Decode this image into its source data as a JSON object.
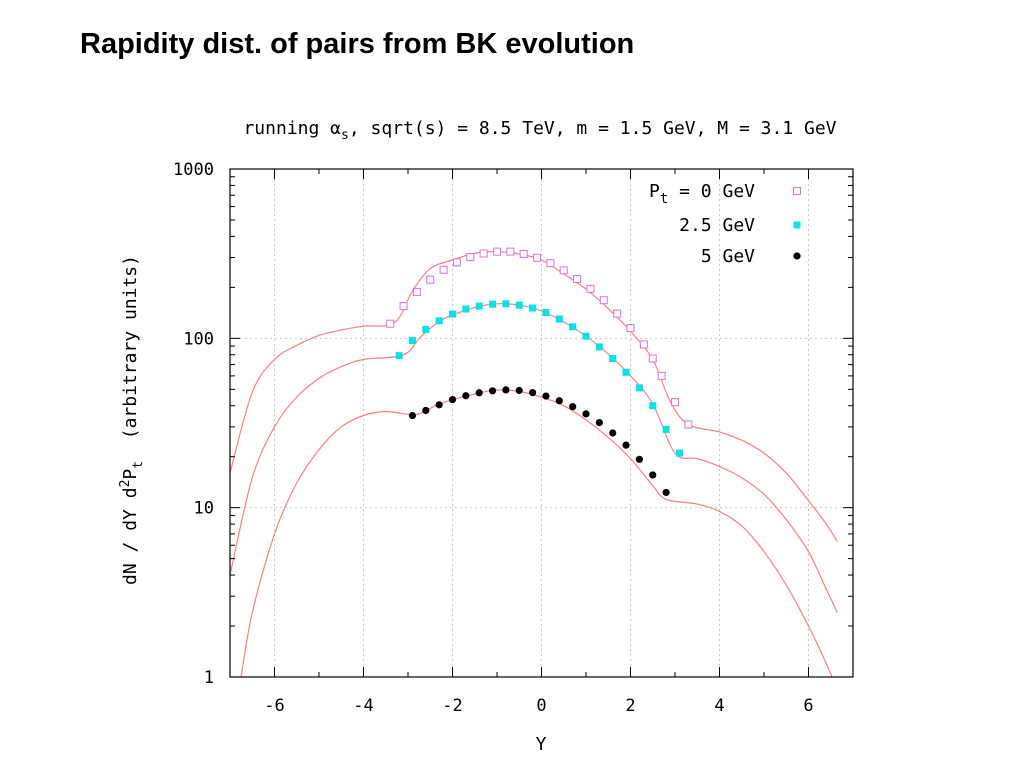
{
  "slide": {
    "title": "Rapidity dist. of pairs from BK evolution"
  },
  "chart_data": {
    "type": "line",
    "title_parts": {
      "pre": "running ",
      "alpha": "α",
      "sub": "s",
      "post": ", sqrt(s) = 8.5 TeV, m = 1.5 GeV, M = 3.1 GeV"
    },
    "xlabel": "Y",
    "ylabel_parts": {
      "pre": "dN / dY d",
      "sup": "2",
      "mid": "P",
      "sub": "t",
      "post": "  (arbitrary units)"
    },
    "xlim": [
      -7,
      7
    ],
    "ylim": [
      1,
      1000
    ],
    "yscale": "log",
    "grid": true,
    "legend_position": "top-right",
    "x_ticks": [
      -6,
      -4,
      -2,
      0,
      2,
      4,
      6
    ],
    "x_tick_labels": [
      "-6",
      "-4",
      "-2",
      "0",
      "2",
      "4",
      "6"
    ],
    "y_ticks": [
      1,
      10,
      100,
      1000
    ],
    "y_tick_labels": [
      "1",
      "10",
      "100",
      "1000"
    ],
    "curve_color": "#ff7f7f",
    "legend": {
      "header": {
        "pre": "P",
        "sub": "t",
        "post": " = 0 GeV"
      },
      "entries": [
        "2.5 GeV",
        "5 GeV"
      ]
    },
    "series": [
      {
        "name": "Pt = 0 GeV",
        "marker": "open-square",
        "color": "#e070e0",
        "curve": [
          [
            -7.0,
            16
          ],
          [
            -6.5,
            48
          ],
          [
            -6.0,
            75
          ],
          [
            -5.5,
            91
          ],
          [
            -5.0,
            104
          ],
          [
            -4.5,
            112
          ],
          [
            -4.0,
            118
          ],
          [
            -3.3,
            124
          ],
          [
            -2.9,
            190
          ],
          [
            -2.5,
            258
          ],
          [
            -2.0,
            290
          ],
          [
            -1.5,
            318
          ],
          [
            -1.0,
            325
          ],
          [
            -0.5,
            315
          ],
          [
            0.0,
            290
          ],
          [
            0.5,
            240
          ],
          [
            1.0,
            195
          ],
          [
            1.5,
            150
          ],
          [
            2.0,
            110
          ],
          [
            2.5,
            75
          ],
          [
            2.9,
            42
          ],
          [
            3.3,
            31
          ],
          [
            4.0,
            28
          ],
          [
            4.5,
            25
          ],
          [
            5.0,
            21
          ],
          [
            5.5,
            16
          ],
          [
            6.0,
            11
          ],
          [
            6.4,
            8
          ],
          [
            6.65,
            6.3
          ]
        ],
        "points": [
          [
            -3.4,
            122
          ],
          [
            -3.1,
            155
          ],
          [
            -2.8,
            188
          ],
          [
            -2.5,
            222
          ],
          [
            -2.2,
            254
          ],
          [
            -1.9,
            281
          ],
          [
            -1.6,
            302
          ],
          [
            -1.3,
            317
          ],
          [
            -1.0,
            325
          ],
          [
            -0.7,
            325
          ],
          [
            -0.4,
            315
          ],
          [
            -0.1,
            299
          ],
          [
            0.2,
            278
          ],
          [
            0.5,
            252
          ],
          [
            0.8,
            224
          ],
          [
            1.1,
            196
          ],
          [
            1.4,
            168
          ],
          [
            1.7,
            140
          ],
          [
            2.0,
            115
          ],
          [
            2.3,
            92
          ],
          [
            2.5,
            76
          ],
          [
            2.7,
            60
          ],
          [
            3.0,
            42
          ],
          [
            3.3,
            31
          ]
        ]
      },
      {
        "name": "2.5 GeV",
        "marker": "filled-square",
        "color": "#00e5e5",
        "curve": [
          [
            -7.0,
            4
          ],
          [
            -6.5,
            15
          ],
          [
            -6.0,
            30
          ],
          [
            -5.5,
            45
          ],
          [
            -5.0,
            58
          ],
          [
            -4.5,
            68
          ],
          [
            -4.0,
            75
          ],
          [
            -3.1,
            80
          ],
          [
            -2.7,
            103
          ],
          [
            -2.2,
            130
          ],
          [
            -1.5,
            152
          ],
          [
            -1.0,
            160
          ],
          [
            -0.5,
            157
          ],
          [
            0.0,
            145
          ],
          [
            0.5,
            125
          ],
          [
            1.0,
            103
          ],
          [
            1.5,
            81
          ],
          [
            2.0,
            60
          ],
          [
            2.5,
            41
          ],
          [
            3.0,
            21
          ],
          [
            3.5,
            19.5
          ],
          [
            4.0,
            17.5
          ],
          [
            4.5,
            15
          ],
          [
            5.0,
            12
          ],
          [
            5.5,
            8.5
          ],
          [
            6.0,
            5.5
          ],
          [
            6.4,
            3.3
          ],
          [
            6.65,
            2.4
          ]
        ],
        "points": [
          [
            -3.2,
            79
          ],
          [
            -2.9,
            97
          ],
          [
            -2.6,
            113
          ],
          [
            -2.3,
            127
          ],
          [
            -2.0,
            139
          ],
          [
            -1.7,
            149
          ],
          [
            -1.4,
            155
          ],
          [
            -1.1,
            159
          ],
          [
            -0.8,
            160
          ],
          [
            -0.5,
            157
          ],
          [
            -0.2,
            151
          ],
          [
            0.1,
            142
          ],
          [
            0.4,
            130
          ],
          [
            0.7,
            117
          ],
          [
            1.0,
            103
          ],
          [
            1.3,
            89
          ],
          [
            1.6,
            76
          ],
          [
            1.9,
            63
          ],
          [
            2.2,
            51
          ],
          [
            2.5,
            40
          ],
          [
            2.8,
            29
          ],
          [
            3.1,
            21
          ]
        ]
      },
      {
        "name": "5 GeV",
        "marker": "filled-circle",
        "color": "#000000",
        "curve": [
          [
            -6.75,
            1
          ],
          [
            -6.5,
            2.4
          ],
          [
            -6.0,
            7
          ],
          [
            -5.5,
            14
          ],
          [
            -5.0,
            22
          ],
          [
            -4.5,
            30
          ],
          [
            -4.0,
            35
          ],
          [
            -3.5,
            37
          ],
          [
            -2.8,
            35.5
          ],
          [
            -2.3,
            41
          ],
          [
            -1.5,
            47
          ],
          [
            -1.0,
            49.5
          ],
          [
            -0.5,
            48.5
          ],
          [
            0.0,
            45
          ],
          [
            0.5,
            40
          ],
          [
            1.0,
            33
          ],
          [
            1.5,
            26
          ],
          [
            2.0,
            19.5
          ],
          [
            2.5,
            13.5
          ],
          [
            2.8,
            11.2
          ],
          [
            3.5,
            10.5
          ],
          [
            4.0,
            9.5
          ],
          [
            4.5,
            7.8
          ],
          [
            5.0,
            5.5
          ],
          [
            5.5,
            3.5
          ],
          [
            6.0,
            2.0
          ],
          [
            6.4,
            1.2
          ],
          [
            6.6,
            0.9
          ]
        ],
        "points": [
          [
            -2.9,
            35
          ],
          [
            -2.6,
            37.5
          ],
          [
            -2.3,
            40.5
          ],
          [
            -2.0,
            43.5
          ],
          [
            -1.7,
            45.8
          ],
          [
            -1.4,
            47.7
          ],
          [
            -1.1,
            49
          ],
          [
            -0.8,
            49.6
          ],
          [
            -0.5,
            49.2
          ],
          [
            -0.2,
            47.8
          ],
          [
            0.1,
            45.6
          ],
          [
            0.4,
            42.8
          ],
          [
            0.7,
            39.5
          ],
          [
            1.0,
            35.8
          ],
          [
            1.3,
            31.8
          ],
          [
            1.6,
            27.6
          ],
          [
            1.9,
            23.4
          ],
          [
            2.2,
            19.3
          ],
          [
            2.5,
            15.6
          ],
          [
            2.8,
            12.3
          ]
        ]
      }
    ]
  }
}
